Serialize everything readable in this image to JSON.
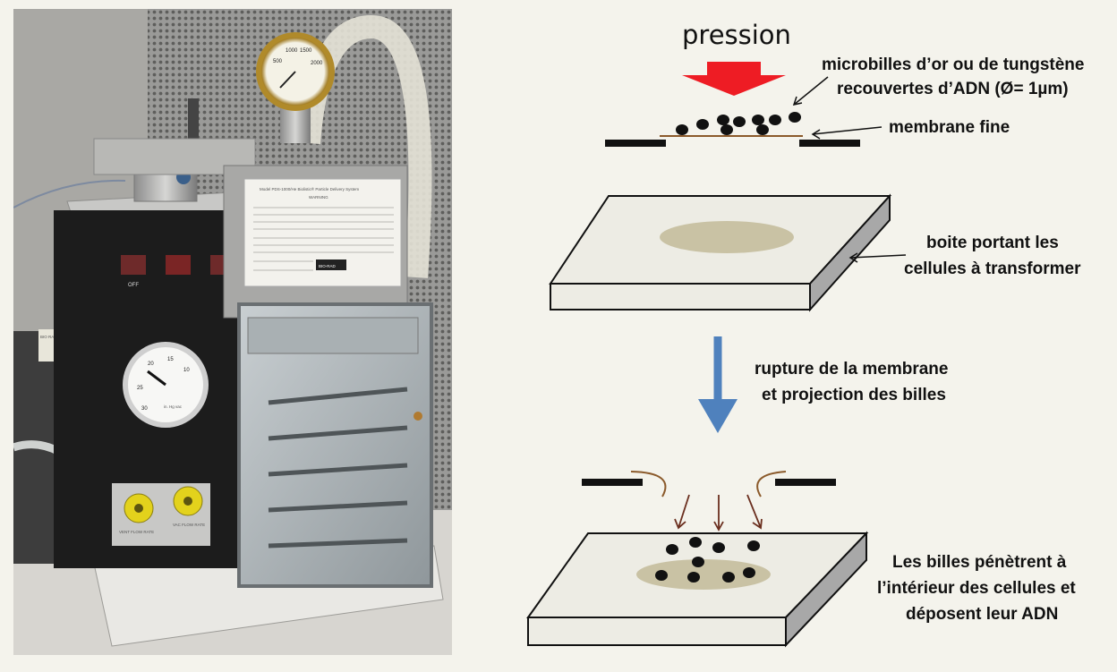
{
  "photo": {
    "brand_label": "BIO-RAD",
    "panel_title": "Model PDS-1000/He Biolistic® Particle Delivery System",
    "panel_subtitle": "WARNING",
    "switch_label": "OFF",
    "gauge_top_ticks": [
      "500",
      "1000",
      "1500",
      "2000"
    ],
    "gauge_vac_ticks": [
      "20",
      "15",
      "10",
      "25",
      "30"
    ],
    "gauge_vac_unit": "in. Hg vac",
    "knob_left_label": "VENT FLOW RATE",
    "knob_right_label": "VAC FLOW RATE",
    "side_sticker": "BIO RAD TRAY ALL OCCLUD"
  },
  "diagram": {
    "pressure_label": "pression",
    "particles_label_line1": "microbilles d’or ou de tungstène",
    "particles_label_line2": "recouvertes d’ADN (Ø= 1µm)",
    "membrane_label": "membrane fine",
    "dish_label_line1": "boite portant les",
    "dish_label_line2": "cellules à transformer",
    "rupture_label_line1": "rupture de la membrane",
    "rupture_label_line2": "et projection des billes",
    "result_label_line1": "Les billes pénètrent à",
    "result_label_line2": "l’intérieur des cellules et",
    "result_label_line3": "déposent leur ADN"
  },
  "colors": {
    "pressure_arrow": "#ee1c24",
    "down_arrow": "#4f81bd",
    "membrane": "#8b5a2b",
    "cell_area": "#c9c2a4",
    "dish_top": "#edece4",
    "projection_arrows": "#6b2f1f"
  }
}
